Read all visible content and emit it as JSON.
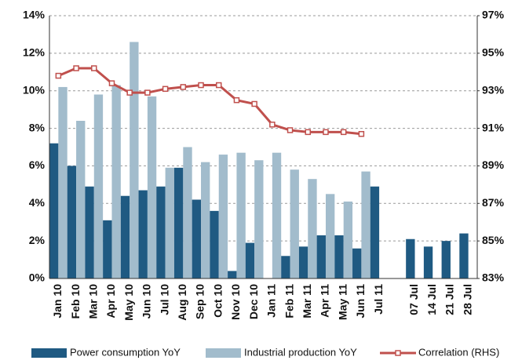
{
  "chart_data": {
    "type": "bar_line",
    "categories": [
      "Jan 10",
      "Feb 10",
      "Mar 10",
      "Apr 10",
      "May 10",
      "Jun 10",
      "Jul 10",
      "Aug 10",
      "Sep 10",
      "Oct 10",
      "Nov 10",
      "Dec 10",
      "Jan 11",
      "Feb 11",
      "Mar 11",
      "Apr 11",
      "May 11",
      "Jun 11",
      "Jul 11",
      null,
      "07 Jul",
      "14 Jul",
      "21 Jul",
      "28 Jul"
    ],
    "series": [
      {
        "name": "Power consumption YoY",
        "color": "#1f5a82",
        "type": "bar",
        "values": [
          7.2,
          6.0,
          4.9,
          3.1,
          4.4,
          4.7,
          4.9,
          5.9,
          4.2,
          3.6,
          0.4,
          1.9,
          null,
          1.2,
          1.7,
          2.3,
          2.3,
          1.6,
          4.9,
          null,
          2.1,
          1.7,
          2.0,
          2.4
        ]
      },
      {
        "name": "Industrial production YoY",
        "color": "#a2bccc",
        "type": "bar",
        "values": [
          10.2,
          8.4,
          9.8,
          10.3,
          12.6,
          9.7,
          5.9,
          7.0,
          6.2,
          6.6,
          6.7,
          6.3,
          6.7,
          5.8,
          5.3,
          4.5,
          4.1,
          5.7,
          null,
          null,
          null,
          null,
          null,
          null
        ]
      },
      {
        "name": "Correlation (RHS)",
        "color": "#c0504d",
        "type": "line",
        "axis": "y2",
        "values": [
          93.8,
          94.2,
          94.2,
          93.4,
          92.9,
          92.9,
          93.1,
          93.2,
          93.3,
          93.3,
          92.5,
          92.3,
          91.2,
          90.9,
          90.8,
          90.8,
          90.8,
          90.7,
          null,
          null,
          null,
          null,
          null,
          null
        ]
      }
    ],
    "ylim": [
      0,
      14
    ],
    "yticks": [
      {
        "value": 0,
        "label": "0%"
      },
      {
        "value": 2,
        "label": "2%"
      },
      {
        "value": 4,
        "label": "4%"
      },
      {
        "value": 6,
        "label": "6%"
      },
      {
        "value": 8,
        "label": "8%"
      },
      {
        "value": 10,
        "label": "10%"
      },
      {
        "value": 12,
        "label": "12%"
      },
      {
        "value": 14,
        "label": "14%"
      }
    ],
    "y2lim": [
      83,
      97
    ],
    "y2ticks": [
      {
        "value": 83,
        "label": "83%"
      },
      {
        "value": 85,
        "label": "85%"
      },
      {
        "value": 87,
        "label": "87%"
      },
      {
        "value": 89,
        "label": "89%"
      },
      {
        "value": 91,
        "label": "91%"
      },
      {
        "value": 93,
        "label": "93%"
      },
      {
        "value": 95,
        "label": "95%"
      },
      {
        "value": 97,
        "label": "97%"
      }
    ],
    "grid": true,
    "legend": "bottom"
  }
}
